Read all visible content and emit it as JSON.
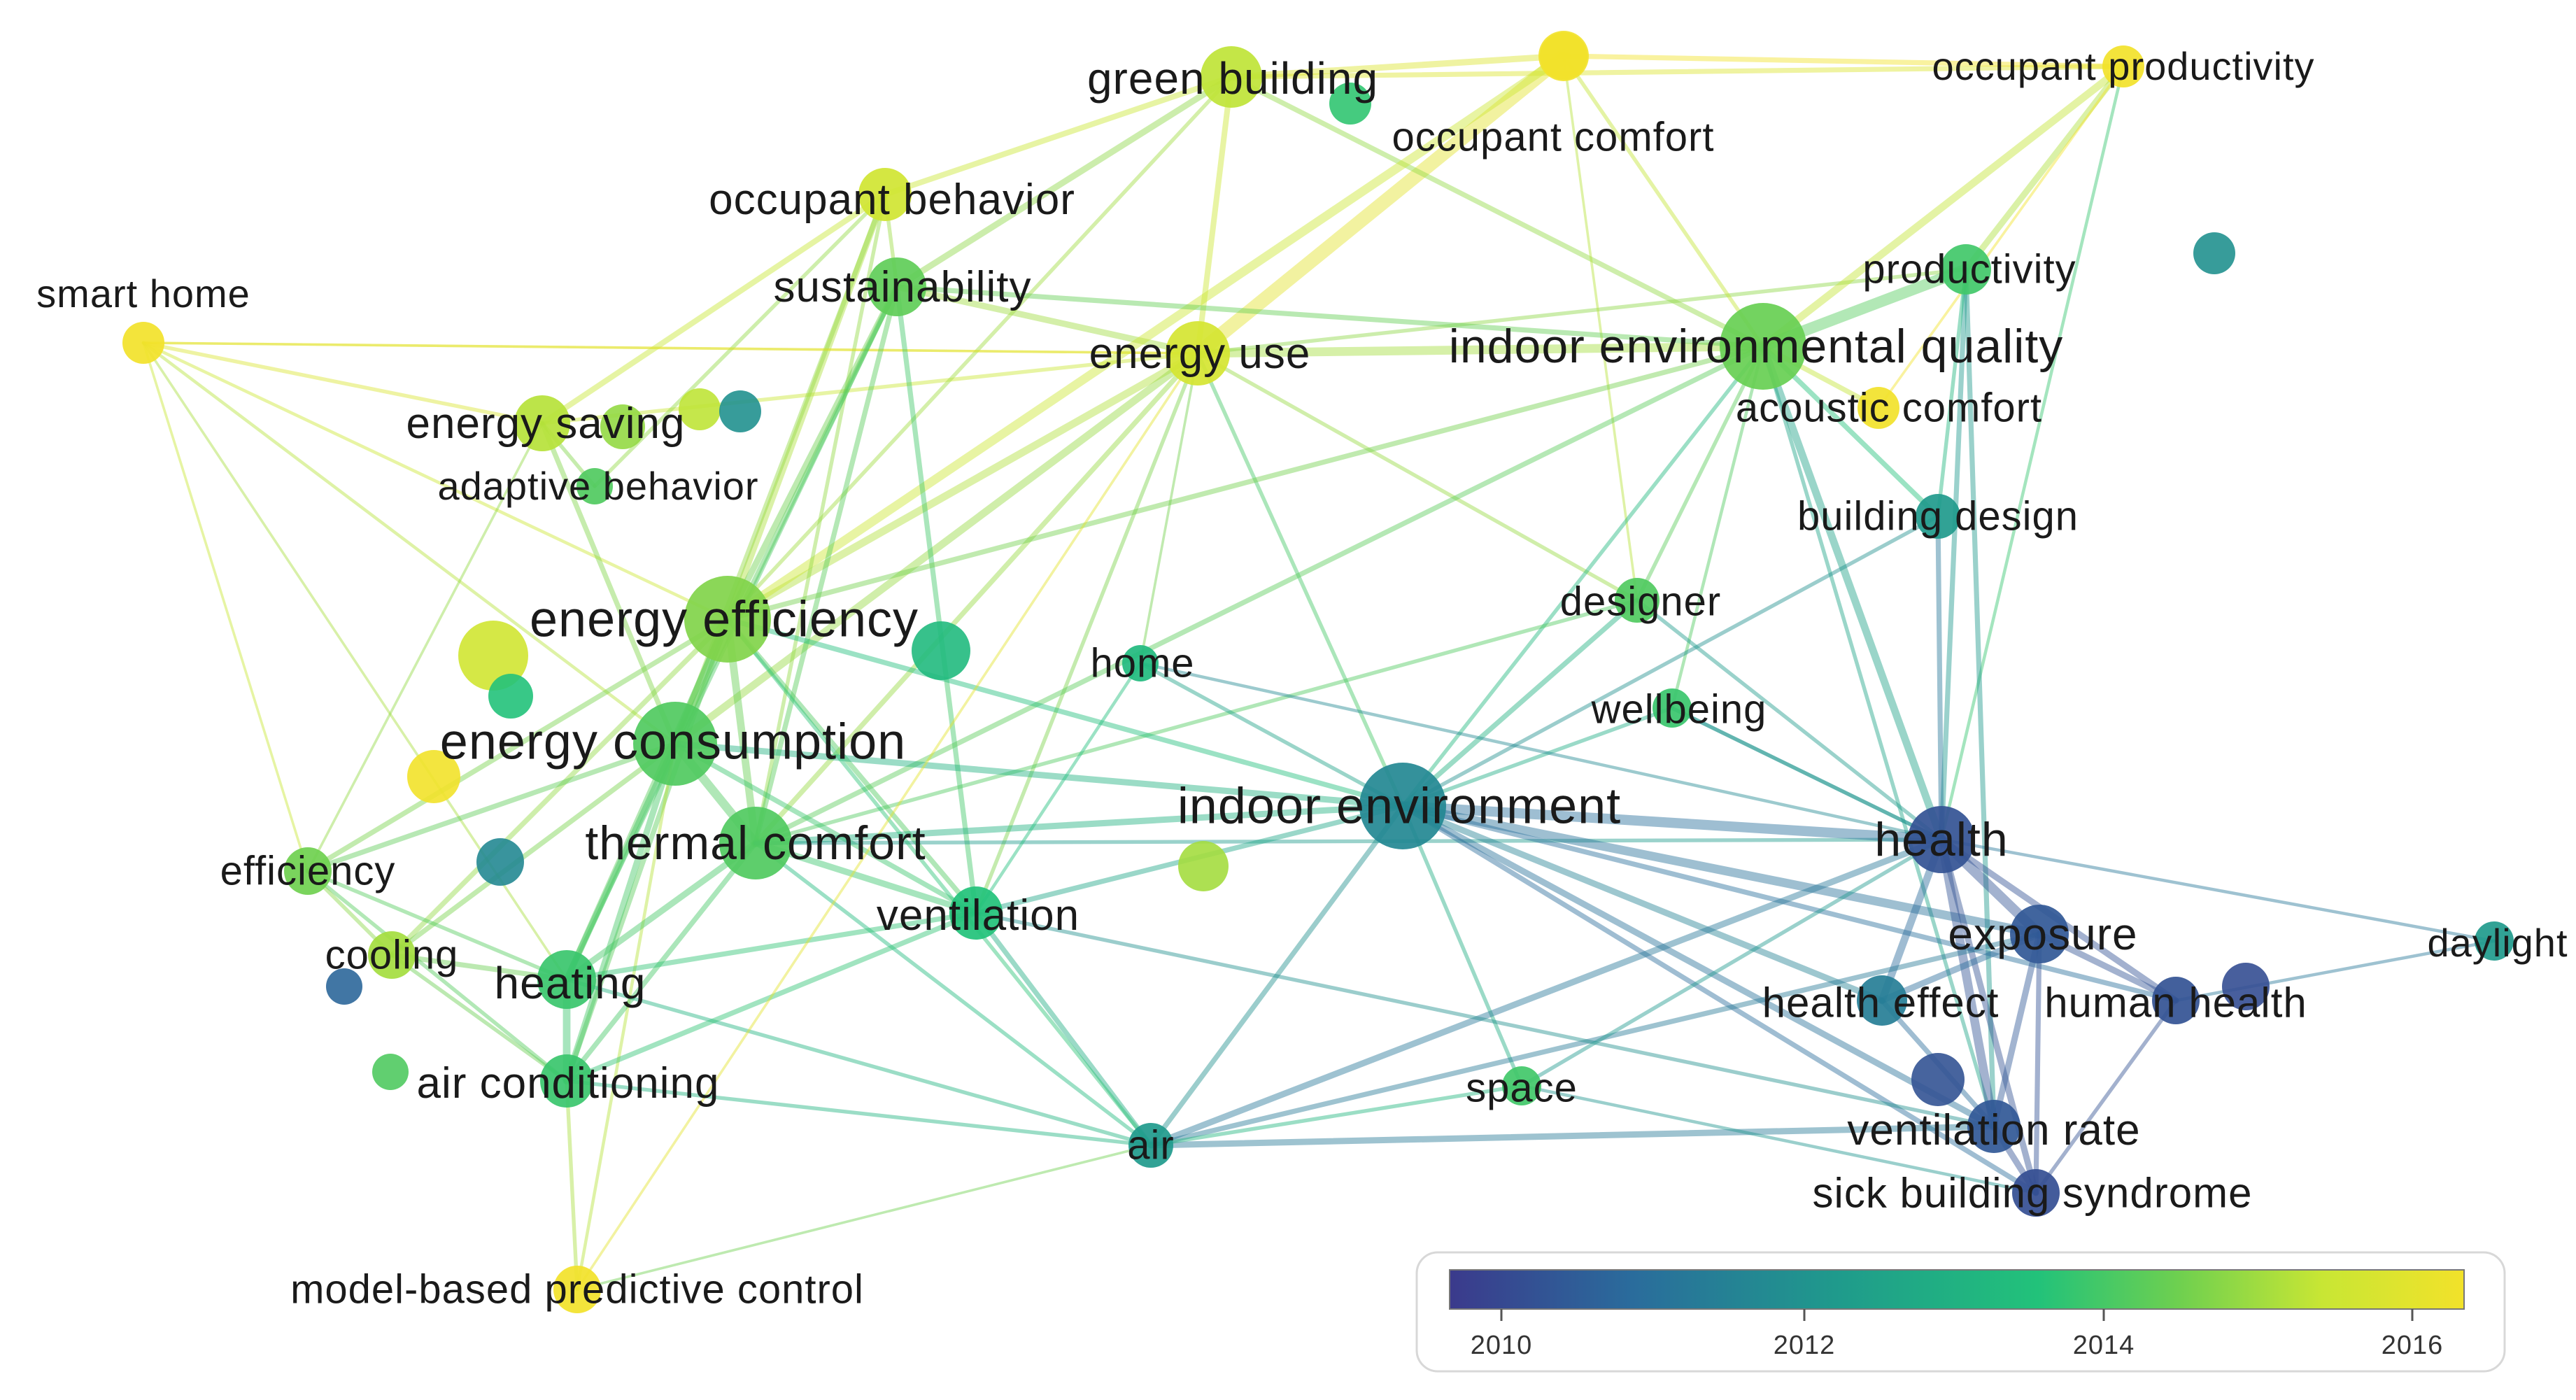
{
  "legend": {
    "ticks": [
      "2010",
      "2012",
      "2014",
      "2016"
    ],
    "colors": [
      "#3b3a8c",
      "#2a6c9c",
      "#1f9a8c",
      "#22c27a",
      "#6fd04f",
      "#c8e634",
      "#f2e22a"
    ]
  },
  "nodes": [
    {
      "id": "green_building",
      "label": "green building",
      "year": 2014.9
    },
    {
      "id": "occupant_comfort",
      "label": "occupant comfort",
      "year": 2016.0
    },
    {
      "id": "occupant_productivity",
      "label": "occupant productivity",
      "year": 2016.0
    },
    {
      "id": "occupant_behavior",
      "label": "occupant behavior",
      "year": 2015.2
    },
    {
      "id": "smart_home",
      "label": "smart home",
      "year": 2016.0
    },
    {
      "id": "sustainability",
      "label": "sustainability",
      "year": 2013.8
    },
    {
      "id": "energy_use",
      "label": "energy use",
      "year": 2015.3
    },
    {
      "id": "indoor_environmental_quality",
      "label": "indoor environmental quality",
      "year": 2013.9
    },
    {
      "id": "productivity",
      "label": "productivity",
      "year": 2013.4
    },
    {
      "id": "acoustic_comfort",
      "label": "acoustic comfort",
      "year": 2016.0
    },
    {
      "id": "energy_saving",
      "label": "energy saving",
      "year": 2014.8
    },
    {
      "id": "adaptive_behavior",
      "label": "adaptive behavior",
      "year": 2013.6
    },
    {
      "id": "building_design",
      "label": "building design",
      "year": 2012.0
    },
    {
      "id": "designer",
      "label": "designer",
      "year": 2013.6
    },
    {
      "id": "energy_efficiency",
      "label": "energy efficiency",
      "year": 2014.2
    },
    {
      "id": "home",
      "label": "home",
      "year": 2012.8
    },
    {
      "id": "wellbeing",
      "label": "wellbeing",
      "year": 2013.3
    },
    {
      "id": "energy_consumption",
      "label": "energy consumption",
      "year": 2013.6
    },
    {
      "id": "indoor_environment",
      "label": "indoor environment",
      "year": 2011.6
    },
    {
      "id": "health",
      "label": "health",
      "year": 2010.5
    },
    {
      "id": "efficiency",
      "label": "efficiency",
      "year": 2014.0
    },
    {
      "id": "thermal_comfort",
      "label": "thermal comfort",
      "year": 2013.6
    },
    {
      "id": "ventilation",
      "label": "ventilation",
      "year": 2013.0
    },
    {
      "id": "exposure",
      "label": "exposure",
      "year": 2010.6
    },
    {
      "id": "daylight",
      "label": "daylight",
      "year": 2012.0
    },
    {
      "id": "cooling",
      "label": "cooling",
      "year": 2014.6
    },
    {
      "id": "heating",
      "label": "heating",
      "year": 2013.3
    },
    {
      "id": "health_effect",
      "label": "health effect",
      "year": 2011.4
    },
    {
      "id": "human_health",
      "label": "human health",
      "year": 2010.5
    },
    {
      "id": "air_conditioning",
      "label": "air conditioning",
      "year": 2013.3
    },
    {
      "id": "space",
      "label": "space",
      "year": 2013.4
    },
    {
      "id": "air",
      "label": "air",
      "year": 2012.0
    },
    {
      "id": "ventilation_rate",
      "label": "ventilation rate",
      "year": 2010.6
    },
    {
      "id": "sick_building_syndrome",
      "label": "sick building syndrome",
      "year": 2010.4
    },
    {
      "id": "model_based_predictive_control",
      "label": "model-based predictive control",
      "year": 2016.0
    }
  ]
}
